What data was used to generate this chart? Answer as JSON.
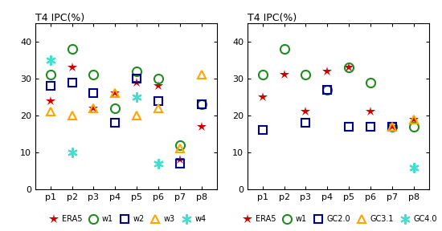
{
  "title": "T4 IPC(%)",
  "phases": [
    "p1",
    "p2",
    "p3",
    "p4",
    "p5",
    "p6",
    "p7",
    "p8"
  ],
  "left_ERA5": [
    24,
    33,
    22,
    26,
    29,
    28,
    8,
    17
  ],
  "left_w1": [
    31,
    38,
    31,
    22,
    32,
    30,
    12,
    23
  ],
  "left_w2": [
    28,
    29,
    26,
    18,
    30,
    24,
    7,
    23
  ],
  "left_w3": [
    21,
    20,
    22,
    26,
    20,
    22,
    11,
    31
  ],
  "left_w4": [
    35,
    10,
    null,
    null,
    25,
    7,
    null,
    null
  ],
  "right_ERA5": [
    25,
    31,
    21,
    32,
    33,
    21,
    17,
    19
  ],
  "right_w1": [
    31,
    38,
    31,
    27,
    33,
    29,
    17,
    17
  ],
  "right_GC20": [
    16,
    null,
    18,
    27,
    17,
    17,
    17,
    null
  ],
  "right_GC31": [
    null,
    null,
    null,
    null,
    null,
    null,
    17,
    19
  ],
  "right_GC40": [
    null,
    null,
    null,
    null,
    null,
    null,
    null,
    6
  ],
  "colors": {
    "ERA5": "#cc0000",
    "w1": "#228B22",
    "w2": "#00008B",
    "w3": "#FFA500",
    "w4": "#40E0D0",
    "GC2.0": "#00008B",
    "GC3.1": "#FFA500",
    "GC4.0": "#40E0D0"
  },
  "ylim": [
    0,
    45
  ],
  "yticks": [
    0,
    10,
    20,
    30,
    40
  ],
  "legend_left": [
    "ERA5",
    "w1",
    "w2",
    "w3",
    "w4"
  ],
  "legend_right": [
    "ERA5",
    "w1",
    "GC2.0",
    "GC3.1",
    "GC4.0"
  ]
}
